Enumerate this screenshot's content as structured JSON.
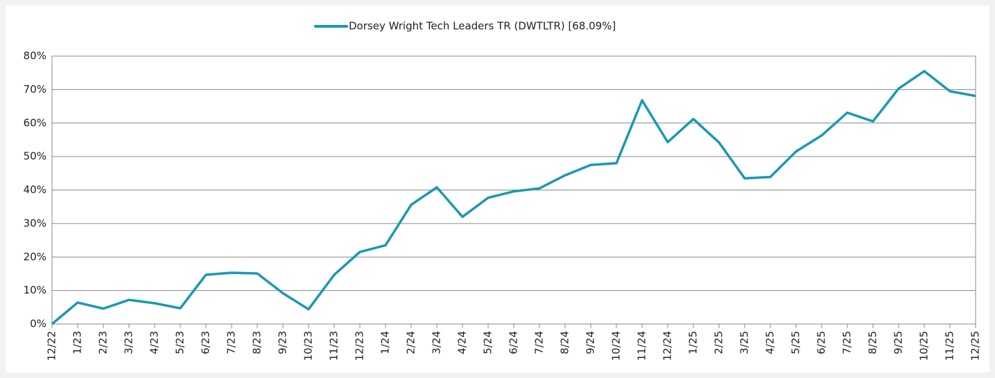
{
  "chart_data": {
    "type": "line",
    "categories": [
      "12/22",
      "1/23",
      "2/23",
      "3/23",
      "4/23",
      "5/23",
      "6/23",
      "7/23",
      "8/23",
      "9/23",
      "10/23",
      "11/23",
      "12/23",
      "1/24",
      "2/24",
      "3/24",
      "4/24",
      "5/24",
      "6/24",
      "7/24",
      "8/24",
      "9/24",
      "10/24",
      "11/24",
      "12/24",
      "1/25",
      "2/25",
      "3/25",
      "4/25",
      "5/25",
      "6/25",
      "7/25",
      "8/25",
      "9/25",
      "10/25",
      "11/25",
      "12/25"
    ],
    "series": [
      {
        "name": "Dorsey Wright Tech Leaders TR (DWTLTR) [68.09%]",
        "color": "#1b98b3",
        "values": [
          0,
          6.4,
          4.6,
          7.2,
          6.2,
          4.7,
          14.7,
          15.3,
          15.1,
          9.2,
          4.4,
          14.7,
          21.5,
          23.5,
          35.6,
          40.8,
          32.0,
          37.7,
          39.6,
          40.5,
          44.4,
          47.5,
          48.0,
          66.8,
          54.3,
          61.2,
          54.2,
          43.5,
          43.9,
          51.5,
          56.3,
          63.1,
          60.5,
          70.3,
          75.5,
          69.5,
          68.09
        ]
      }
    ],
    "ylim": [
      0,
      80
    ],
    "yticks": [
      {
        "value": 0,
        "label": "0%"
      },
      {
        "value": 10,
        "label": "10%"
      },
      {
        "value": 20,
        "label": "20%"
      },
      {
        "value": 30,
        "label": "30%"
      },
      {
        "value": 40,
        "label": "40%"
      },
      {
        "value": 50,
        "label": "50%"
      },
      {
        "value": 60,
        "label": "60%"
      },
      {
        "value": 70,
        "label": "70%"
      },
      {
        "value": 80,
        "label": "80%"
      }
    ],
    "grid": true,
    "legend": "top"
  }
}
